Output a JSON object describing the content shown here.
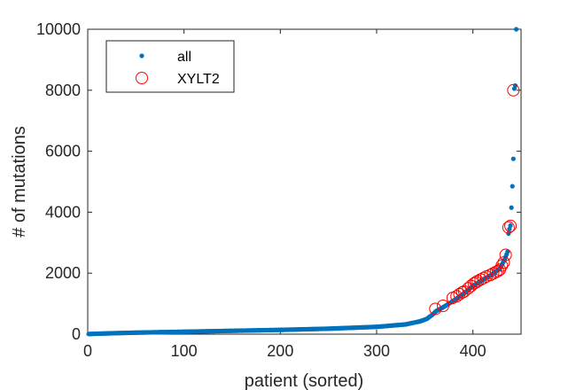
{
  "chart_data": {
    "type": "scatter",
    "xlabel": "patient (sorted)",
    "ylabel": "# of mutations",
    "xlim": [
      0,
      450
    ],
    "ylim": [
      0,
      10000
    ],
    "xticks": [
      0,
      100,
      200,
      300,
      400
    ],
    "yticks": [
      0,
      2000,
      4000,
      6000,
      8000,
      10000
    ],
    "grid": false,
    "legend_position": "top-left",
    "series": [
      {
        "name": "all",
        "marker": "dot",
        "color": "#0072BD",
        "curve": [
          [
            1,
            5
          ],
          [
            10,
            15
          ],
          [
            25,
            30
          ],
          [
            50,
            50
          ],
          [
            100,
            80
          ],
          [
            150,
            110
          ],
          [
            200,
            140
          ],
          [
            250,
            180
          ],
          [
            300,
            240
          ],
          [
            330,
            320
          ],
          [
            345,
            420
          ],
          [
            352,
            500
          ],
          [
            358,
            640
          ],
          [
            362,
            760
          ],
          [
            370,
            900
          ],
          [
            380,
            1100
          ],
          [
            390,
            1320
          ],
          [
            400,
            1580
          ],
          [
            410,
            1780
          ],
          [
            420,
            1960
          ],
          [
            428,
            2150
          ],
          [
            433,
            2450
          ],
          [
            436,
            2700
          ],
          [
            437,
            3300
          ],
          [
            438,
            3450
          ],
          [
            439,
            3560
          ],
          [
            440,
            4150
          ],
          [
            441,
            4850
          ],
          [
            442,
            5750
          ],
          [
            443,
            8050
          ],
          [
            444,
            8150
          ],
          [
            445,
            10000
          ]
        ]
      },
      {
        "name": "XYLT2",
        "marker": "circle",
        "color": "#FF0000",
        "points": [
          [
            361,
            830
          ],
          [
            369,
            930
          ],
          [
            379,
            1190
          ],
          [
            383,
            1240
          ],
          [
            386,
            1310
          ],
          [
            389,
            1370
          ],
          [
            391,
            1400
          ],
          [
            395,
            1500
          ],
          [
            398,
            1580
          ],
          [
            401,
            1660
          ],
          [
            403,
            1700
          ],
          [
            405,
            1740
          ],
          [
            408,
            1790
          ],
          [
            411,
            1840
          ],
          [
            414,
            1890
          ],
          [
            418,
            1940
          ],
          [
            421,
            1990
          ],
          [
            424,
            2040
          ],
          [
            426,
            2070
          ],
          [
            428,
            2120
          ],
          [
            430,
            2250
          ],
          [
            432,
            2350
          ],
          [
            434,
            2600
          ],
          [
            437,
            3500
          ],
          [
            439,
            3550
          ],
          [
            442,
            8000
          ]
        ]
      }
    ]
  }
}
